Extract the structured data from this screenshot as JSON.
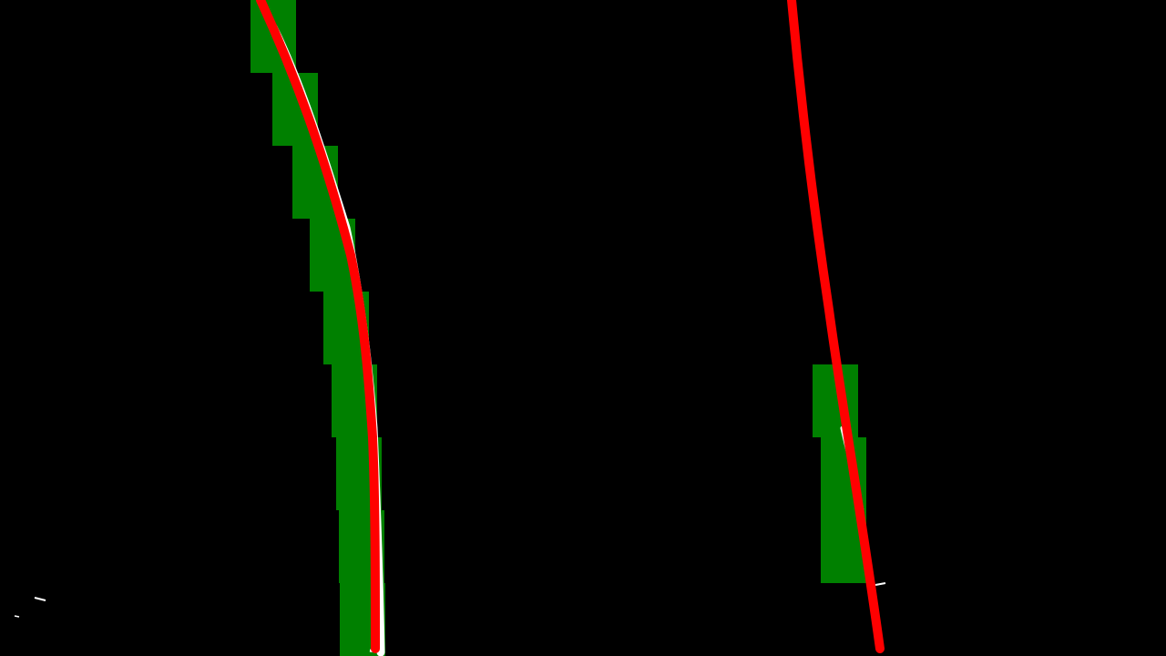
{
  "image": {
    "kind": "birds-eye lane-detection visualization",
    "background_color": "#000000"
  },
  "colors": {
    "window": "#008000",
    "pixel": "#ffffff",
    "fit": "#ff0000"
  },
  "lanes": [
    {
      "name": "left-lane",
      "window_count": 9
    },
    {
      "name": "right-lane",
      "window_count": 3
    }
  ]
}
